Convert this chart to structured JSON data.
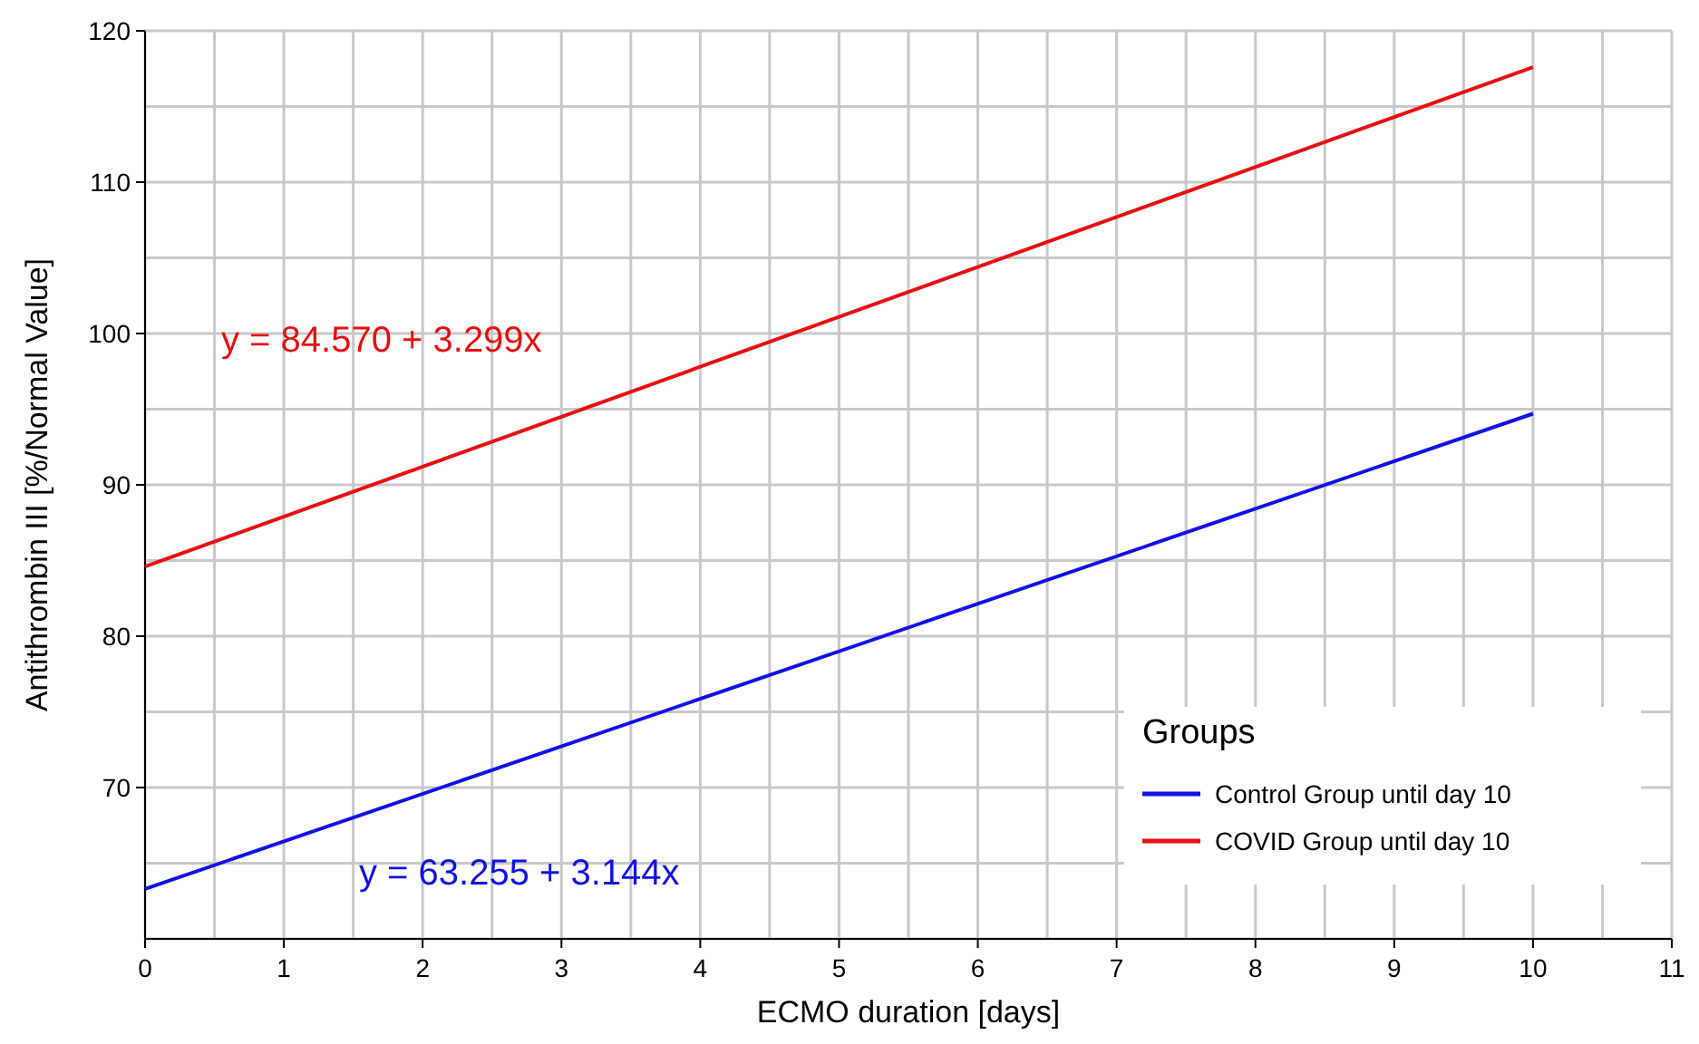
{
  "chart_data": {
    "type": "line",
    "xlabel": "ECMO duration [days]",
    "ylabel": "Antithrombin III [%/Normal Value]",
    "legend_title": "Groups",
    "legend": "bottom right",
    "grid": true,
    "line_style": "solid",
    "marker": "none",
    "xlim": [
      0,
      11
    ],
    "ylim": [
      60,
      120
    ],
    "xticks": [
      0,
      {
        "value": 0.5,
        "label": null
      },
      1,
      {
        "value": 1.5,
        "label": null
      },
      2,
      {
        "value": 2.5,
        "label": null
      },
      3,
      {
        "value": 3.5,
        "label": null
      },
      4,
      {
        "value": 4.5,
        "label": null
      },
      5,
      {
        "value": 5.5,
        "label": null
      },
      6,
      {
        "value": 6.5,
        "label": null
      },
      7,
      {
        "value": 7.5,
        "label": null
      },
      8,
      {
        "value": 8.5,
        "label": null
      },
      9,
      {
        "value": 9.5,
        "label": null
      },
      10,
      {
        "value": 10.5,
        "label": null
      },
      11
    ],
    "yticks": [
      {
        "value": 60,
        "label": null
      },
      {
        "value": 65,
        "label": null
      },
      70,
      {
        "value": 75,
        "label": null
      },
      80,
      {
        "value": 85,
        "label": null
      },
      90,
      {
        "value": 95,
        "label": null
      },
      100,
      {
        "value": 105,
        "label": null
      },
      110,
      {
        "value": 115,
        "label": null
      },
      120
    ],
    "x": [
      0,
      10
    ],
    "series": [
      {
        "name": "Control Group until day 10",
        "color": "#1010e8",
        "values": [
          63.3,
          94.7
        ]
      },
      {
        "name": "COVID Group until day 10",
        "color": "#e81010",
        "values": [
          84.6,
          117.6
        ]
      }
    ],
    "annotations": [
      "y = 84.570 + 3.299x",
      "y = 63.255 + 3.144x"
    ]
  }
}
